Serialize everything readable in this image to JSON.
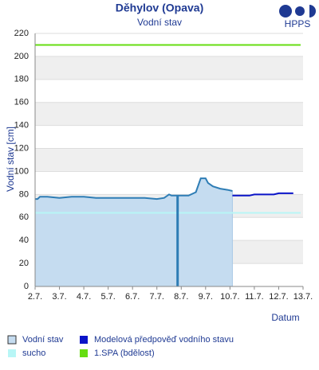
{
  "chart_data": {
    "type": "line",
    "title": "Děhylov (Opava)",
    "subtitle": "Vodní stav",
    "logo": "HPPS",
    "y_label": "Vodní stav [cm]",
    "x_label": "Datum",
    "xlim": [
      2,
      13
    ],
    "ylim": [
      0,
      220
    ],
    "xticks": [
      {
        "value": 2,
        "label": "2.7."
      },
      {
        "value": 3,
        "label": "3.7."
      },
      {
        "value": 4,
        "label": "4.7."
      },
      {
        "value": 5,
        "label": "5.7."
      },
      {
        "value": 6,
        "label": "6.7."
      },
      {
        "value": 7,
        "label": "7.7."
      },
      {
        "value": 8,
        "label": "8.7."
      },
      {
        "value": 9,
        "label": "9.7."
      },
      {
        "value": 10,
        "label": "10.7."
      },
      {
        "value": 11,
        "label": "11.7."
      },
      {
        "value": 12,
        "label": "12.7."
      },
      {
        "value": 13,
        "label": "13.7."
      }
    ],
    "yticks": [
      0,
      20,
      40,
      60,
      80,
      100,
      120,
      140,
      160,
      180,
      200,
      220
    ],
    "grid": true,
    "current_time": 7.85,
    "series": [
      {
        "name": "Vodní stav",
        "color": "#2e7db5",
        "fill": "#c5dcf0",
        "area": true,
        "x": [
          2.0,
          2.1,
          2.2,
          2.5,
          3.0,
          3.5,
          4.0,
          4.5,
          5.0,
          5.5,
          6.0,
          6.5,
          7.0,
          7.3,
          7.5,
          7.6,
          7.8,
          8.0,
          8.3,
          8.6,
          8.8,
          9.0,
          9.1,
          9.3,
          9.6,
          9.9,
          10.1
        ],
        "values": [
          76,
          76,
          78,
          78,
          77,
          78,
          78,
          77,
          77,
          77,
          77,
          77,
          76,
          77,
          80,
          79,
          79,
          79,
          79,
          82,
          94,
          94,
          90,
          87,
          85,
          84,
          83
        ]
      },
      {
        "name": "Modelová předpověď vodního stavu",
        "color": "#0a14c8",
        "area": false,
        "x": [
          10.1,
          10.8,
          11.0,
          11.8,
          12.0,
          12.6
        ],
        "values": [
          79,
          79,
          80,
          80,
          81,
          81
        ]
      },
      {
        "name": "sucho",
        "color": "#b8f6f6",
        "area": false,
        "x": [
          2,
          12.9
        ],
        "values": [
          64,
          64
        ]
      },
      {
        "name": "1.SPA (bdělost)",
        "color": "#66dd11",
        "area": false,
        "x": [
          2,
          12.9
        ],
        "values": [
          210,
          210
        ]
      }
    ]
  }
}
